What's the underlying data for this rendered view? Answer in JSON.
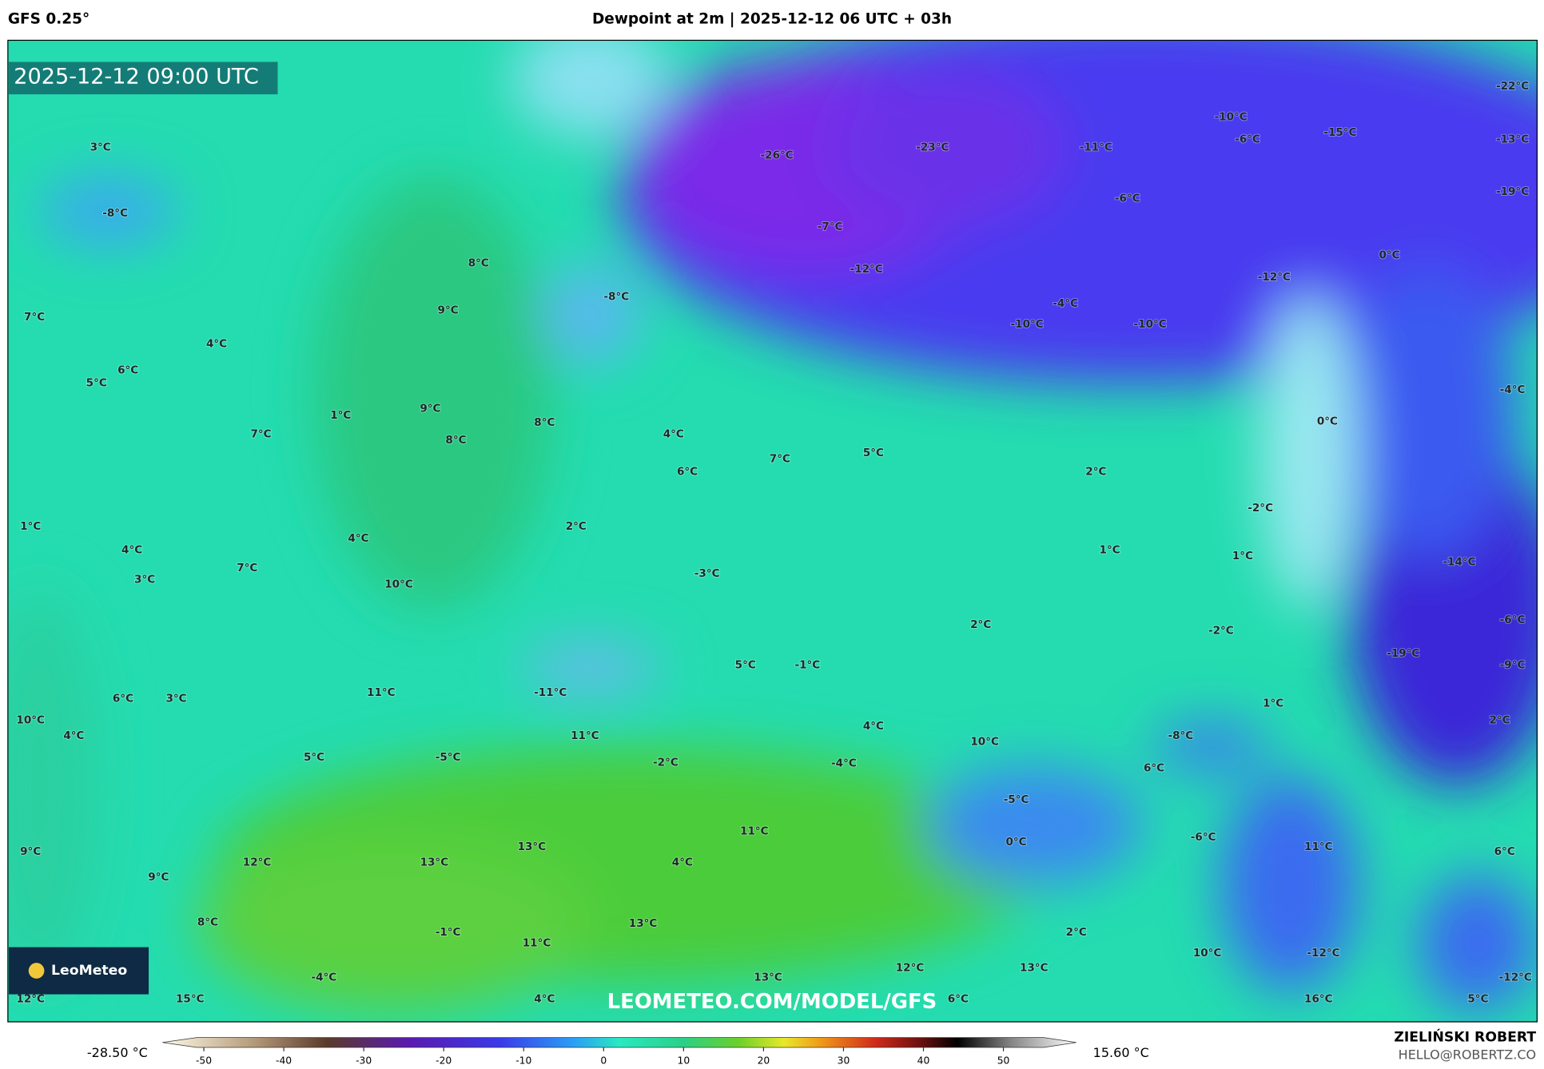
{
  "header": {
    "model": "GFS 0.25°",
    "title": "Dewpoint at 2m | 2025-12-12 06 UTC + 03h"
  },
  "map": {
    "timestamp": "2025-12-12 09:00 UTC",
    "watermark": "LEOMETEO.COM/MODEL/GFS",
    "logo": "LeoMeteo",
    "labels": [
      "3°C",
      "-8°C",
      "8°C",
      "-8°C",
      "9°C",
      "7°C",
      "4°C",
      "6°C",
      "5°C",
      "1°C",
      "9°C",
      "8°C",
      "4°C",
      "7°C",
      "8°C",
      "7°C",
      "5°C",
      "6°C",
      "2°C",
      "1°C",
      "2°C",
      "4°C",
      "4°C",
      "1°C",
      "7°C",
      "3°C",
      "-3°C",
      "10°C",
      "2°C",
      "5°C",
      "-1°C",
      "11°C",
      "-11°C",
      "6°C",
      "3°C",
      "10°C",
      "4°C",
      "4°C",
      "11°C",
      "10°C",
      "5°C",
      "-5°C",
      "-2°C",
      "-4°C",
      "-5°C",
      "0°C",
      "11°C",
      "13°C",
      "9°C",
      "12°C",
      "13°C",
      "4°C",
      "9°C",
      "8°C",
      "13°C",
      "-1°C",
      "11°C",
      "12°C",
      "13°C",
      "13°C",
      "-4°C",
      "12°C",
      "15°C",
      "4°C",
      "6°C",
      "16°C",
      "5°C",
      "-12°C",
      "-12°C",
      "10°C",
      "2°C",
      "6°C",
      "11°C",
      "-6°C",
      "6°C",
      "-8°C",
      "1°C",
      "2°C",
      "-9°C",
      "-19°C",
      "-6°C",
      "-2°C",
      "-14°C",
      "1°C",
      "-2°C",
      "0°C",
      "-4°C",
      "0°C",
      "-12°C",
      "-10°C",
      "-4°C",
      "-10°C",
      "-12°C",
      "-7°C",
      "-26°C",
      "-23°C",
      "-11°C",
      "-10°C",
      "-6°C",
      "-15°C",
      "-22°C",
      "-13°C",
      "-19°C",
      "-6°C"
    ]
  },
  "colorbar": {
    "min_label": "-28.50 °C",
    "max_label": "15.60 °C",
    "ticks": [
      -50,
      -40,
      -30,
      -20,
      -10,
      0,
      10,
      20,
      30,
      40,
      50
    ]
  },
  "credit": {
    "name": "ZIELIŃSKI ROBERT",
    "email": "HELLO@ROBERTZ.CO"
  }
}
